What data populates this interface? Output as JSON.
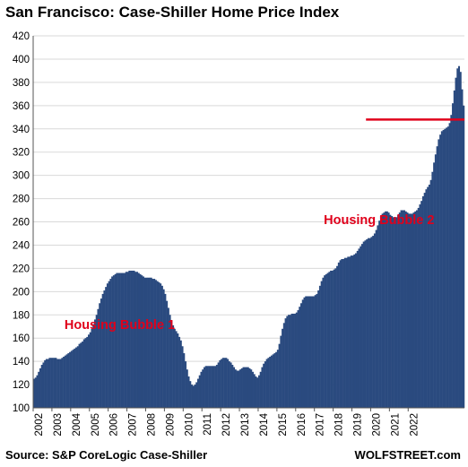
{
  "chart_data": {
    "type": "bar",
    "title": "San Francisco: Case-Shiller Home Price Index",
    "source": "Source: S&P CoreLogic Case-Shiller",
    "brand": "WOLFSTREET.com",
    "xlabel": "",
    "ylabel": "",
    "ylim": [
      100,
      420
    ],
    "y_ticks": [
      100,
      120,
      140,
      160,
      180,
      200,
      220,
      240,
      260,
      280,
      300,
      320,
      340,
      360,
      380,
      400,
      420
    ],
    "x_ticks": [
      "2002",
      "2003",
      "2004",
      "2005",
      "2006",
      "2007",
      "2008",
      "2009",
      "2010",
      "2011",
      "2012",
      "2013",
      "2014",
      "2015",
      "2016",
      "2017",
      "2018",
      "2019",
      "2020",
      "2021",
      "2022"
    ],
    "grid": true,
    "bar_color": "#2a4a7f",
    "annotation_color": "#e0001b",
    "frequency": "monthly",
    "start": "2002-01",
    "series": [
      {
        "values": [
          125,
          126,
          128,
          131,
          134,
          137,
          139,
          141,
          142,
          142,
          143,
          143,
          143,
          143,
          143,
          142,
          142,
          142,
          143,
          144,
          145,
          146,
          147,
          148,
          149,
          150,
          151,
          152,
          153,
          155,
          156,
          157,
          159,
          160,
          161,
          163,
          165,
          168,
          172,
          176,
          180,
          185,
          190,
          194,
          198,
          201,
          204,
          207,
          209,
          211,
          213,
          214,
          215,
          216,
          216,
          216,
          216,
          216,
          216,
          217,
          217,
          218,
          218,
          218,
          218,
          217,
          217,
          216,
          215,
          214,
          213,
          212,
          212,
          212,
          212,
          212,
          211,
          211,
          210,
          209,
          208,
          207,
          205,
          202,
          198,
          192,
          186,
          180,
          175,
          171,
          168,
          166,
          164,
          161,
          158,
          153,
          147,
          140,
          133,
          127,
          123,
          120,
          119,
          120,
          122,
          125,
          128,
          131,
          133,
          135,
          136,
          136,
          136,
          136,
          136,
          136,
          136,
          137,
          139,
          141,
          142,
          143,
          143,
          143,
          142,
          140,
          139,
          137,
          135,
          133,
          132,
          132,
          133,
          134,
          135,
          135,
          135,
          135,
          134,
          133,
          131,
          129,
          127,
          126,
          128,
          131,
          135,
          138,
          140,
          142,
          143,
          144,
          145,
          146,
          147,
          148,
          150,
          155,
          162,
          168,
          173,
          177,
          179,
          180,
          180,
          181,
          181,
          181,
          182,
          184,
          187,
          190,
          193,
          195,
          196,
          196,
          196,
          196,
          196,
          196,
          197,
          198,
          201,
          205,
          209,
          212,
          214,
          215,
          216,
          217,
          218,
          218,
          219,
          220,
          222,
          225,
          227,
          228,
          228,
          229,
          229,
          230,
          230,
          231,
          231,
          232,
          233,
          235,
          237,
          239,
          241,
          243,
          244,
          245,
          246,
          246,
          247,
          248,
          250,
          253,
          257,
          261,
          265,
          267,
          268,
          269,
          269,
          268,
          266,
          265,
          264,
          263,
          264,
          266,
          268,
          270,
          270,
          270,
          269,
          268,
          267,
          267,
          267,
          268,
          269,
          270,
          272,
          275,
          278,
          282,
          285,
          288,
          290,
          292,
          296,
          303,
          311,
          318,
          325,
          331,
          335,
          338,
          339,
          340,
          341,
          342,
          345,
          352,
          362,
          373,
          384,
          392,
          394,
          389,
          374,
          360
        ]
      }
    ],
    "reference_line": {
      "value": 348,
      "from": "2019-10"
    },
    "annotations": [
      {
        "text": "Housing Bubble 1",
        "x": "2003-09",
        "y": 168
      },
      {
        "text": "Housing Bubble 2",
        "x": "2017-07",
        "y": 258
      }
    ]
  }
}
